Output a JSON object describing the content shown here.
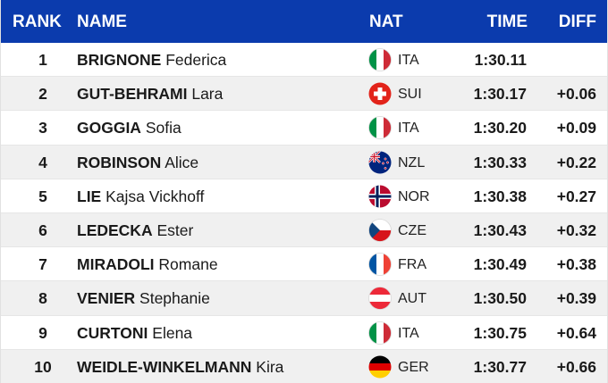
{
  "header": {
    "rank": "RANK",
    "name": "NAME",
    "nat": "NAT",
    "time": "TIME",
    "diff": "DIFF",
    "color": "#0b3bad"
  },
  "rows": [
    {
      "rank": "1",
      "last": "BRIGNONE",
      "first": "Federica",
      "flag": "italy-flag-icon",
      "nat": "ITA",
      "time": "1:30.11",
      "diff": ""
    },
    {
      "rank": "2",
      "last": "GUT-BEHRAMI",
      "first": "Lara",
      "flag": "switzerland-flag-icon",
      "nat": "SUI",
      "time": "1:30.17",
      "diff": "+0.06"
    },
    {
      "rank": "3",
      "last": "GOGGIA",
      "first": "Sofia",
      "flag": "italy-flag-icon",
      "nat": "ITA",
      "time": "1:30.20",
      "diff": "+0.09"
    },
    {
      "rank": "4",
      "last": "ROBINSON",
      "first": "Alice",
      "flag": "new-zealand-flag-icon",
      "nat": "NZL",
      "time": "1:30.33",
      "diff": "+0.22"
    },
    {
      "rank": "5",
      "last": "LIE",
      "first": "Kajsa Vickhoff",
      "flag": "norway-flag-icon",
      "nat": "NOR",
      "time": "1:30.38",
      "diff": "+0.27"
    },
    {
      "rank": "6",
      "last": "LEDECKA",
      "first": "Ester",
      "flag": "czech-flag-icon",
      "nat": "CZE",
      "time": "1:30.43",
      "diff": "+0.32"
    },
    {
      "rank": "7",
      "last": "MIRADOLI",
      "first": "Romane",
      "flag": "france-flag-icon",
      "nat": "FRA",
      "time": "1:30.49",
      "diff": "+0.38"
    },
    {
      "rank": "8",
      "last": "VENIER",
      "first": "Stephanie",
      "flag": "austria-flag-icon",
      "nat": "AUT",
      "time": "1:30.50",
      "diff": "+0.39"
    },
    {
      "rank": "9",
      "last": "CURTONI",
      "first": "Elena",
      "flag": "italy-flag-icon",
      "nat": "ITA",
      "time": "1:30.75",
      "diff": "+0.64"
    },
    {
      "rank": "10",
      "last": "WEIDLE-WINKELMANN",
      "first": "Kira",
      "flag": "germany-flag-icon",
      "nat": "GER",
      "time": "1:30.77",
      "diff": "+0.66"
    }
  ]
}
